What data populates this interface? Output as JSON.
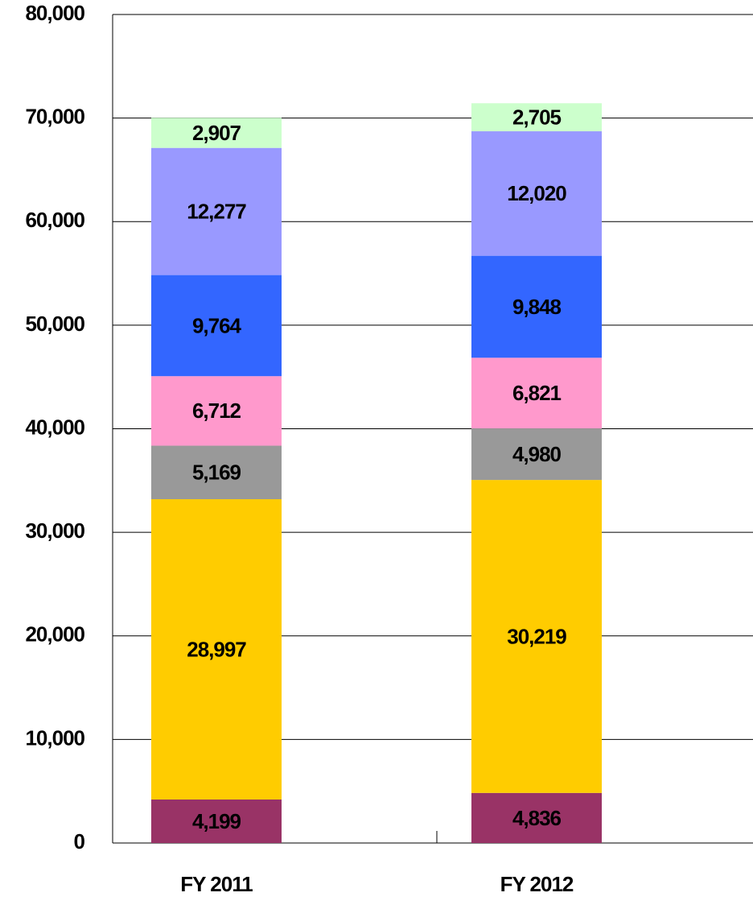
{
  "chart_data": {
    "type": "stacked_bar",
    "categories": [
      "FY 2011",
      "FY 2012"
    ],
    "series": [
      {
        "color": "#993366",
        "values": [
          4199,
          4836
        ],
        "value_labels": [
          "4,199",
          "4,836"
        ]
      },
      {
        "color": "#ffcc00",
        "values": [
          28997,
          30219
        ],
        "value_labels": [
          "28,997",
          "30,219"
        ]
      },
      {
        "color": "#999999",
        "values": [
          5169,
          4980
        ],
        "value_labels": [
          "5,169",
          "4,980"
        ]
      },
      {
        "color": "#ff99cc",
        "values": [
          6712,
          6821
        ],
        "value_labels": [
          "6,712",
          "6,821"
        ]
      },
      {
        "color": "#3366ff",
        "values": [
          9764,
          9848
        ],
        "value_labels": [
          "9,764",
          "9,848"
        ]
      },
      {
        "color": "#9999ff",
        "values": [
          12277,
          12020
        ],
        "value_labels": [
          "12,277",
          "12,020"
        ]
      },
      {
        "color": "#ccffcc",
        "values": [
          2907,
          2705
        ],
        "value_labels": [
          "2,907",
          "2,705"
        ]
      }
    ],
    "ylim": [
      0,
      80000
    ],
    "yticks": [
      0,
      {
        "value": 10000,
        "label": "10,000"
      },
      {
        "value": 20000,
        "label": "20,000"
      },
      {
        "value": 30000,
        "label": "30,000"
      },
      {
        "value": 40000,
        "label": "40,000"
      },
      {
        "value": 50000,
        "label": "50,000"
      },
      {
        "value": 60000,
        "label": "60,000"
      },
      {
        "value": 70000,
        "label": "70,000"
      },
      {
        "value": 80000,
        "label": "80,000"
      }
    ],
    "grid": true
  }
}
